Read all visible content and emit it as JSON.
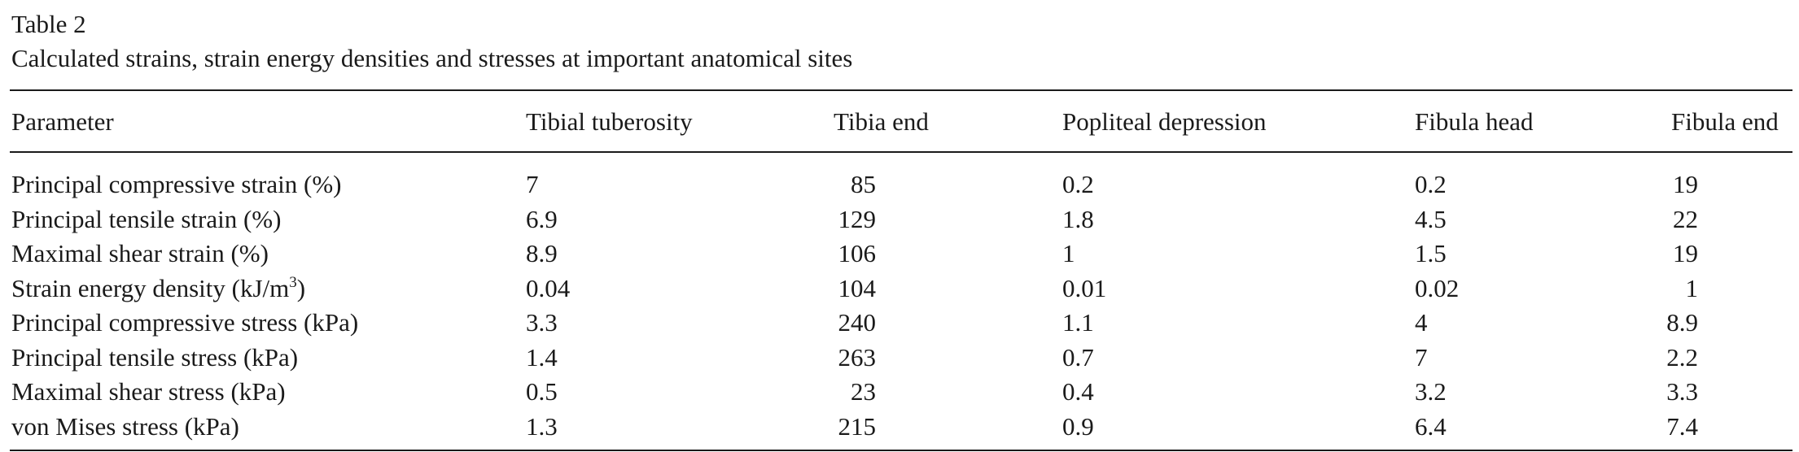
{
  "caption": {
    "label": "Table 2",
    "title": "Calculated strains, strain energy densities and stresses at important anatomical sites"
  },
  "table": {
    "headers": [
      "Parameter",
      "Tibial tuberosity",
      "Tibia end",
      "Popliteal depression",
      "Fibula head",
      "Fibula end"
    ],
    "rows": [
      {
        "param": "Principal compressive strain (%)",
        "unit_sup": "",
        "param_tail": "",
        "values": [
          "7",
          "85",
          "0.2",
          "0.2",
          "19"
        ]
      },
      {
        "param": "Principal tensile strain (%)",
        "unit_sup": "",
        "param_tail": "",
        "values": [
          "6.9",
          "129",
          "1.8",
          "4.5",
          "22"
        ]
      },
      {
        "param": "Maximal shear strain (%)",
        "unit_sup": "",
        "param_tail": "",
        "values": [
          "8.9",
          "106",
          "1",
          "1.5",
          "19"
        ]
      },
      {
        "param": "Strain energy density (kJ/m",
        "unit_sup": "3",
        "param_tail": ")",
        "values": [
          "0.04",
          "104",
          "0.01",
          "0.02",
          "1"
        ]
      },
      {
        "param": "Principal compressive stress (kPa)",
        "unit_sup": "",
        "param_tail": "",
        "values": [
          "3.3",
          "240",
          "1.1",
          "4",
          "8.9"
        ]
      },
      {
        "param": "Principal tensile stress (kPa)",
        "unit_sup": "",
        "param_tail": "",
        "values": [
          "1.4",
          "263",
          "0.7",
          "7",
          "2.2"
        ]
      },
      {
        "param": "Maximal shear stress (kPa)",
        "unit_sup": "",
        "param_tail": "",
        "values": [
          "0.5",
          "23",
          "0.4",
          "3.2",
          "3.3"
        ]
      },
      {
        "param": "von Mises stress (kPa)",
        "unit_sup": "",
        "param_tail": "",
        "values": [
          "1.3",
          "215",
          "0.9",
          "6.4",
          "7.4"
        ]
      }
    ]
  }
}
